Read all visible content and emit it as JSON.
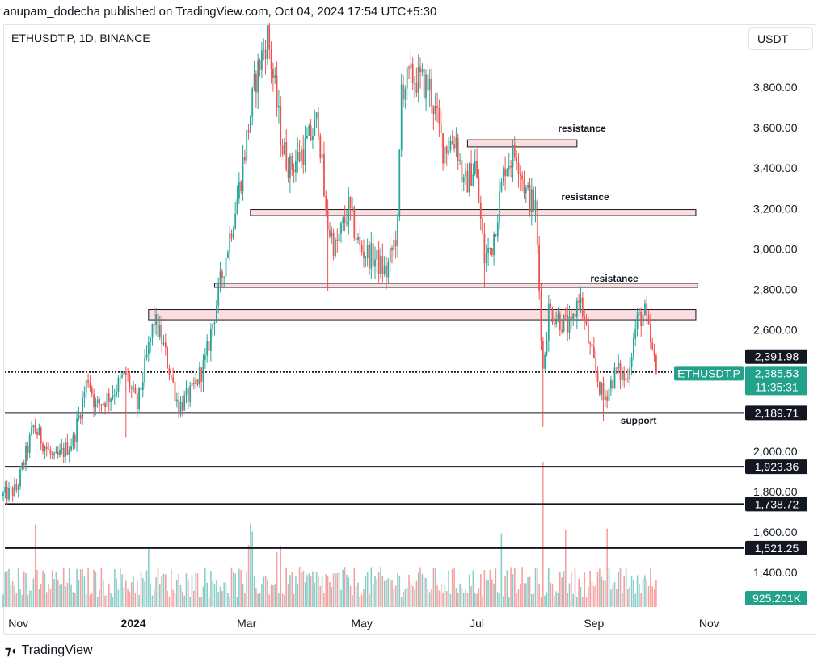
{
  "header": {
    "published": "anupam_dodecha published on TradingView.com, Oct 04, 2024 17:54 UTC+5:30"
  },
  "symbol": {
    "title": "ETHUSDT.P, 1D, BINANCE"
  },
  "currency_button": "USDT",
  "footer": {
    "brand": "TradingView"
  },
  "colors": {
    "up": "#26a69a",
    "down": "#ef5350",
    "zone_fill": "#fddede",
    "black_label": "#131722",
    "teal_label": "#22a18b"
  },
  "chart_data": {
    "type": "candlestick",
    "symbol": "ETHUSDT.P",
    "interval": "1D",
    "exchange": "BINANCE",
    "y_axis": {
      "ylim": [
        1200,
        4100
      ],
      "ticks": [
        1400,
        1600,
        1800,
        2000,
        2200,
        2400,
        2600,
        2800,
        3000,
        3200,
        3400,
        3600,
        3800
      ],
      "tick_labels": [
        "1,400.00",
        "1,600.00",
        "1,800.00",
        "2,000.00",
        "",
        "",
        "2,600.00",
        "2,800.00",
        "3,000.00",
        "3,200.00",
        "3,400.00",
        "3,600.00",
        "3,800.00"
      ]
    },
    "x_axis": {
      "start": "2023-10-24",
      "end": "2024-11-03",
      "ticks": [
        {
          "date": "2023-11-01",
          "label": "Nov",
          "bold": false
        },
        {
          "date": "2024-01-01",
          "label": "2024",
          "bold": true
        },
        {
          "date": "2024-03-01",
          "label": "Mar",
          "bold": false
        },
        {
          "date": "2024-05-01",
          "label": "May",
          "bold": false
        },
        {
          "date": "2024-07-01",
          "label": "Jul",
          "bold": false
        },
        {
          "date": "2024-09-01",
          "label": "Sep",
          "bold": false
        },
        {
          "date": "2024-11-01",
          "label": "Nov",
          "bold": false
        }
      ]
    },
    "price_path": [
      [
        "2023-10-24",
        1780
      ],
      [
        "2023-10-31",
        1810
      ],
      [
        "2023-11-09",
        2120
      ],
      [
        "2023-11-13",
        2060
      ],
      [
        "2023-11-20",
        1950
      ],
      [
        "2023-11-30",
        2050
      ],
      [
        "2023-12-08",
        2370
      ],
      [
        "2023-12-12",
        2220
      ],
      [
        "2023-12-20",
        2280
      ],
      [
        "2023-12-28",
        2380
      ],
      [
        "2024-01-03",
        2220
      ],
      [
        "2024-01-12",
        2650
      ],
      [
        "2024-01-16",
        2550
      ],
      [
        "2024-01-25",
        2220
      ],
      [
        "2024-02-01",
        2290
      ],
      [
        "2024-02-08",
        2440
      ],
      [
        "2024-02-15",
        2780
      ],
      [
        "2024-02-26",
        3300
      ],
      [
        "2024-03-06",
        3850
      ],
      [
        "2024-03-12",
        4060
      ],
      [
        "2024-03-20",
        3500
      ],
      [
        "2024-03-24",
        3400
      ],
      [
        "2024-04-01",
        3500
      ],
      [
        "2024-04-08",
        3640
      ],
      [
        "2024-04-12",
        3150
      ],
      [
        "2024-04-17",
        3000
      ],
      [
        "2024-04-24",
        3200
      ],
      [
        "2024-04-30",
        3000
      ],
      [
        "2024-05-08",
        2950
      ],
      [
        "2024-05-14",
        2880
      ],
      [
        "2024-05-20",
        3100
      ],
      [
        "2024-05-22",
        3800
      ],
      [
        "2024-05-28",
        3850
      ],
      [
        "2024-06-06",
        3800
      ],
      [
        "2024-06-13",
        3500
      ],
      [
        "2024-06-20",
        3550
      ],
      [
        "2024-06-24",
        3300
      ],
      [
        "2024-06-30",
        3420
      ],
      [
        "2024-07-05",
        2950
      ],
      [
        "2024-07-09",
        3020
      ],
      [
        "2024-07-16",
        3420
      ],
      [
        "2024-07-22",
        3480
      ],
      [
        "2024-07-27",
        3280
      ],
      [
        "2024-08-01",
        3200
      ],
      [
        "2024-08-05",
        2400
      ],
      [
        "2024-08-08",
        2700
      ],
      [
        "2024-08-14",
        2650
      ],
      [
        "2024-08-20",
        2600
      ],
      [
        "2024-08-24",
        2780
      ],
      [
        "2024-08-30",
        2500
      ],
      [
        "2024-09-06",
        2250
      ],
      [
        "2024-09-13",
        2400
      ],
      [
        "2024-09-18",
        2350
      ],
      [
        "2024-09-24",
        2650
      ],
      [
        "2024-09-28",
        2680
      ],
      [
        "2024-10-04",
        2385
      ]
    ],
    "volume_axis_max": 1400000,
    "volume_last": "925.201K",
    "zones": [
      {
        "start": "2024-06-26",
        "end": "2024-08-23",
        "low": 3505,
        "high": 3540,
        "label": "resistance"
      },
      {
        "start": "2024-03-03",
        "end": "2024-10-25",
        "low": 3165,
        "high": 3195,
        "label": "resistance"
      },
      {
        "start": "2024-02-13",
        "end": "2024-10-26",
        "low": 2810,
        "high": 2830,
        "label": "resistance"
      },
      {
        "start": "2024-01-09",
        "end": "2024-10-25",
        "low": 2650,
        "high": 2700,
        "label": ""
      }
    ],
    "support_label": "support",
    "horizontal_lines": [
      {
        "price": 2391.98,
        "style": "dotted",
        "label": "2,391.98"
      },
      {
        "price": 2189.71,
        "style": "solid",
        "label": "2,189.71"
      },
      {
        "price": 1923.36,
        "style": "solid",
        "label": "1,923.36"
      },
      {
        "price": 1738.72,
        "style": "solid",
        "label": "1,738.72"
      },
      {
        "price": 1521.25,
        "style": "solid",
        "label": "1,521.25"
      }
    ],
    "current_price": {
      "symbol": "ETHUSDT.P",
      "price": 2385.53,
      "label": "2,385.53",
      "countdown": "11:35:31"
    }
  }
}
